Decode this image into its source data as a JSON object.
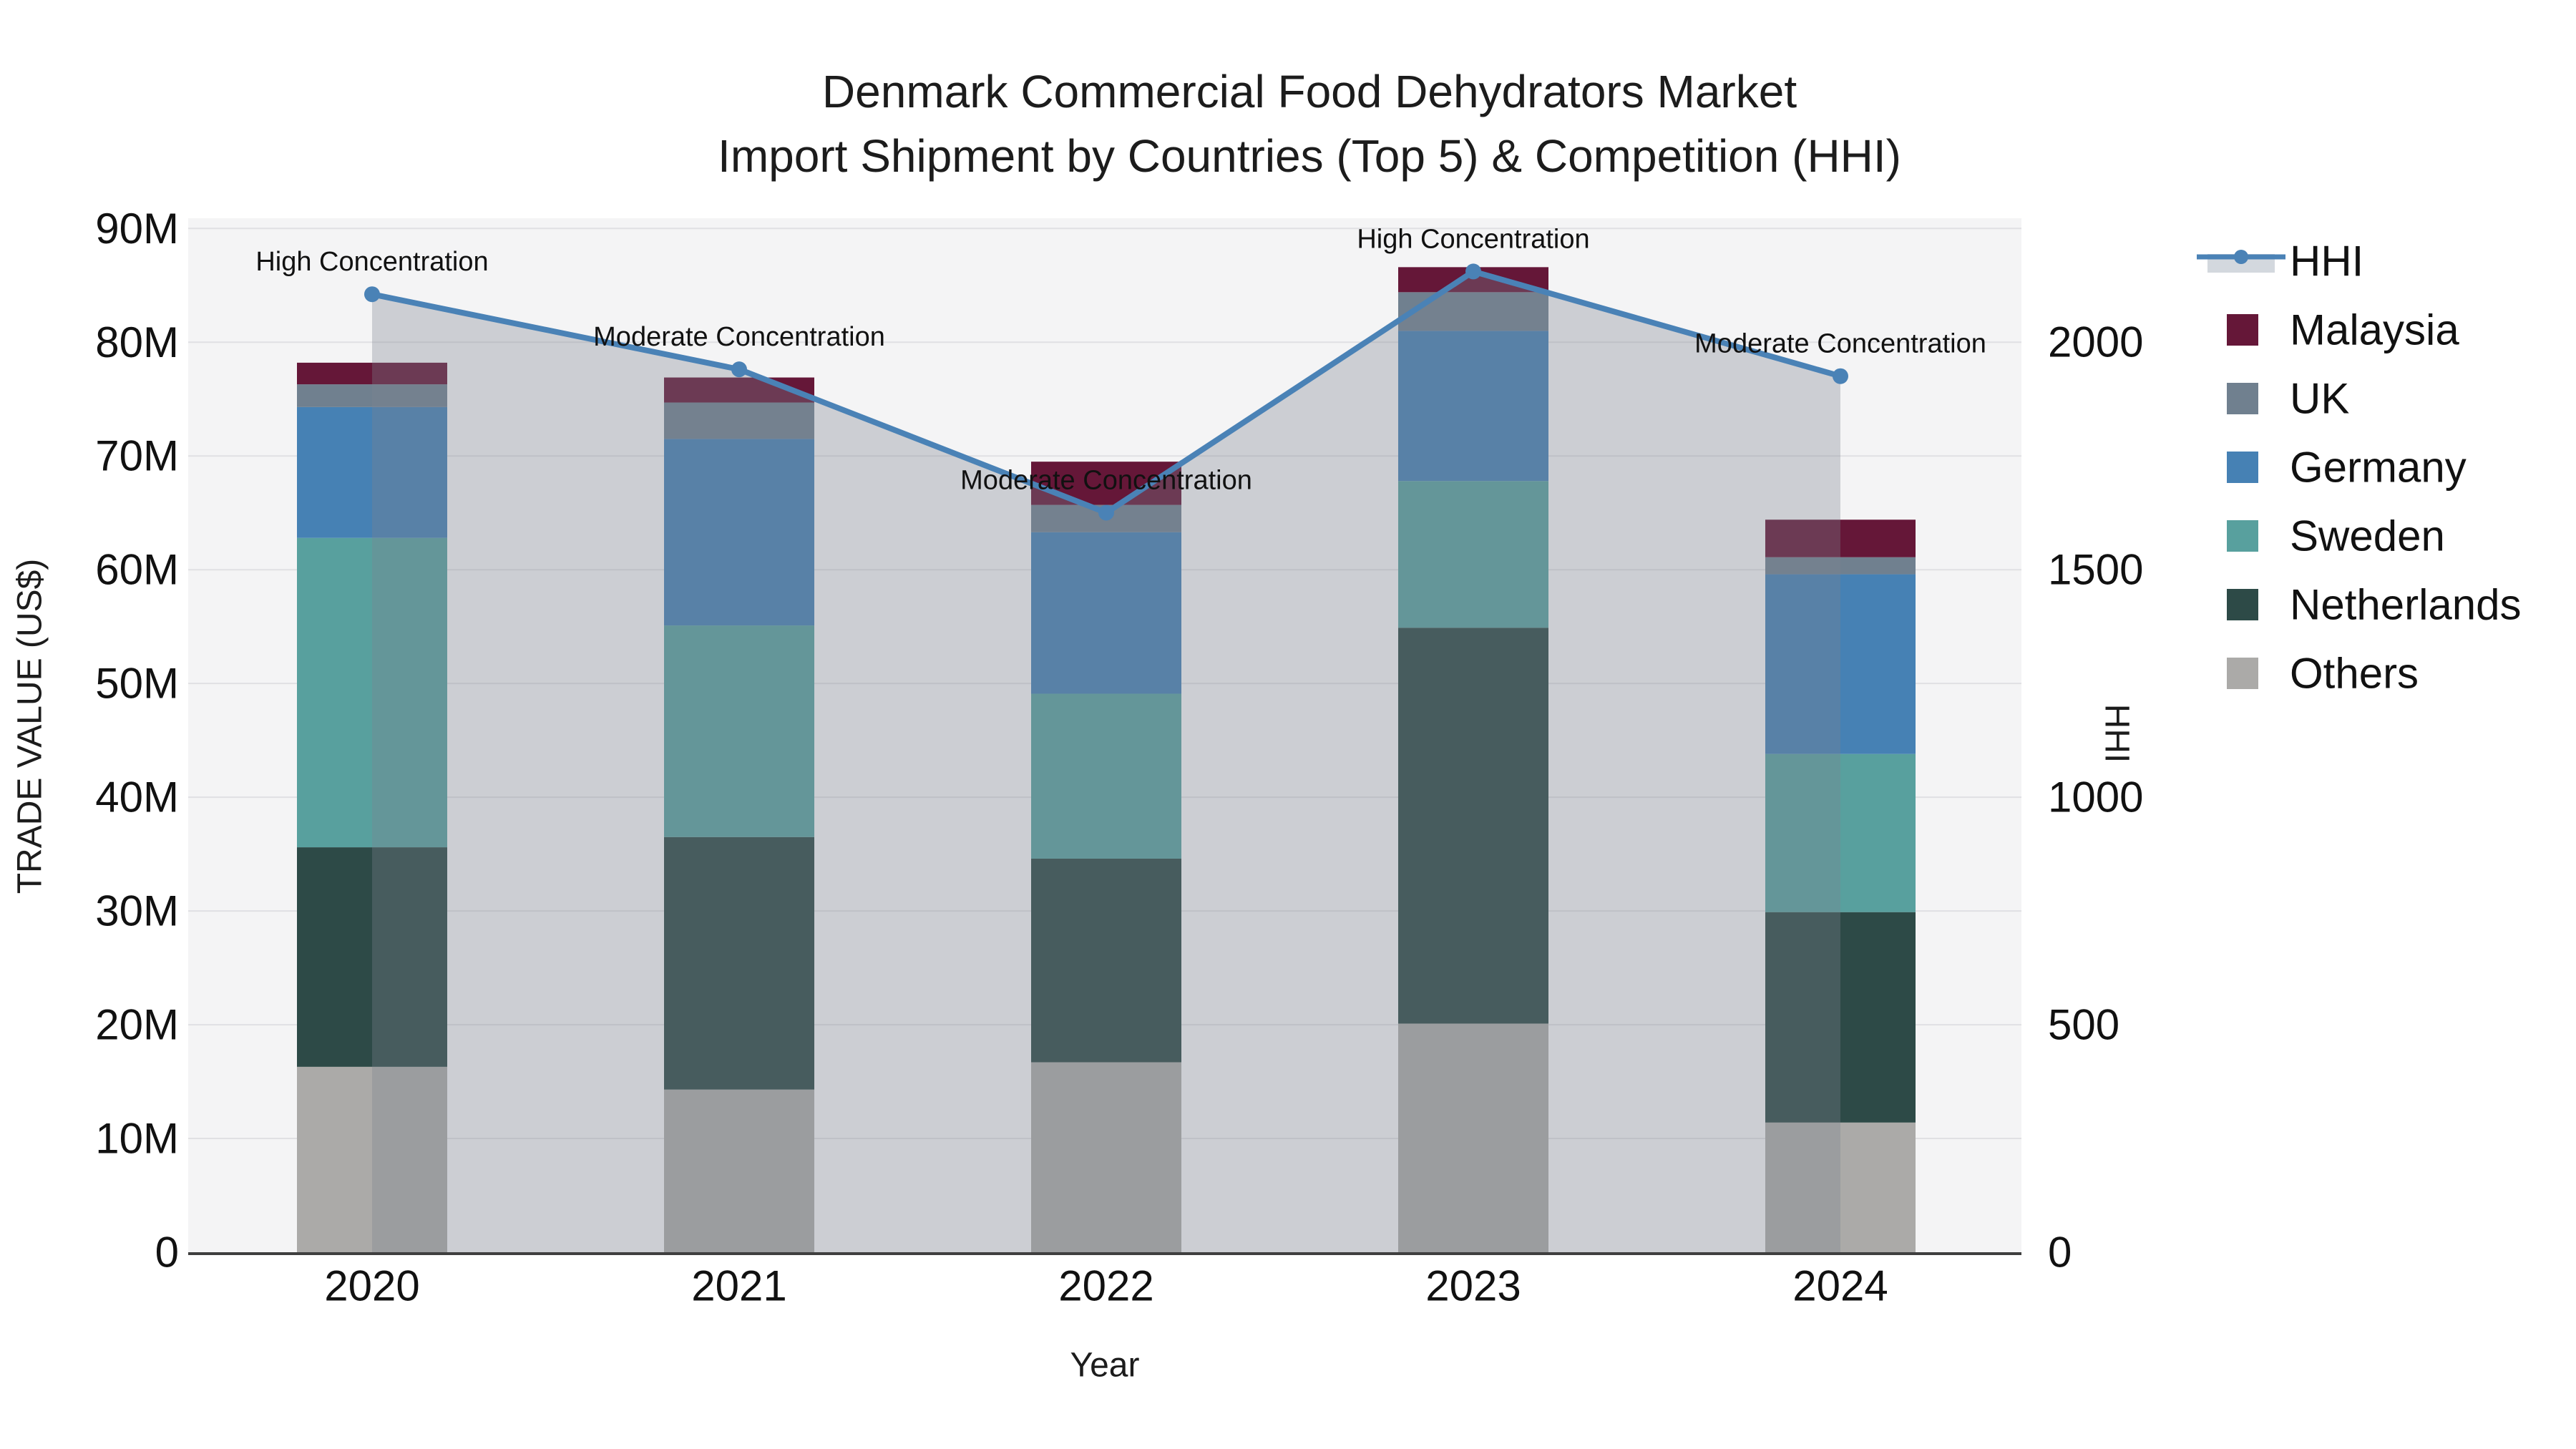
{
  "title": {
    "line1": "Denmark Commercial Food Dehydrators Market",
    "line2": "Import Shipment by Countries (Top 5) & Competition (HHI)"
  },
  "axes": {
    "left": {
      "title": "TRADE VALUE (US$)",
      "tick_labels": [
        "0",
        "10M",
        "20M",
        "30M",
        "40M",
        "50M",
        "60M",
        "70M",
        "80M",
        "90M"
      ],
      "tick_values": [
        0,
        10,
        20,
        30,
        40,
        50,
        60,
        70,
        80,
        90
      ]
    },
    "right": {
      "title": "HHI",
      "tick_labels": [
        "0",
        "500",
        "1000",
        "1500",
        "2000"
      ],
      "tick_values": [
        0,
        500,
        1000,
        1500,
        2000
      ]
    },
    "x": {
      "title": "Year",
      "tick_labels": [
        "2020",
        "2021",
        "2022",
        "2023",
        "2024"
      ]
    }
  },
  "legend": {
    "items": [
      {
        "label": "HHI",
        "type": "line",
        "color": "#4a82b6"
      },
      {
        "label": "Malaysia",
        "type": "swatch",
        "color": "#651738"
      },
      {
        "label": "UK",
        "type": "swatch",
        "color": "#70808f"
      },
      {
        "label": "Germany",
        "type": "swatch",
        "color": "#4681b4"
      },
      {
        "label": "Sweden",
        "type": "swatch",
        "color": "#58a09e"
      },
      {
        "label": "Netherlands",
        "type": "swatch",
        "color": "#2d4a47"
      },
      {
        "label": "Others",
        "type": "swatch",
        "color": "#abaaa8"
      }
    ]
  },
  "annotations": [
    {
      "x": "2020",
      "text": "High Concentration"
    },
    {
      "x": "2021",
      "text": "Moderate Concentration"
    },
    {
      "x": "2022",
      "text": "Moderate Concentration"
    },
    {
      "x": "2023",
      "text": "High Concentration"
    },
    {
      "x": "2024",
      "text": "Moderate Concentration"
    }
  ],
  "colors": {
    "plot_bg": "#f4f4f5",
    "grid": "#e0e0e3",
    "axis_line": "#3f3f3f",
    "fill_overlay": "rgba(124,130,144,0.33)",
    "hhi_line": "#4a82b6",
    "legend_fill_band": "#d3d8de",
    "text": "#111111"
  },
  "chart_data": {
    "type": "stacked-bar+line",
    "title": "Denmark Commercial Food Dehydrators Market — Import Shipment by Countries (Top 5) & Competition (HHI)",
    "categories": [
      "2020",
      "2021",
      "2022",
      "2023",
      "2024"
    ],
    "series": [
      {
        "name": "Others",
        "color": "#abaaa8",
        "values": [
          16.3,
          14.3,
          16.7,
          20.1,
          11.4
        ]
      },
      {
        "name": "Netherlands",
        "color": "#2d4a47",
        "values": [
          19.3,
          22.2,
          17.9,
          34.8,
          18.5
        ]
      },
      {
        "name": "Sweden",
        "color": "#58a09e",
        "values": [
          27.2,
          18.6,
          14.5,
          12.9,
          13.9
        ]
      },
      {
        "name": "Germany",
        "color": "#4681b4",
        "values": [
          11.5,
          16.4,
          14.2,
          13.2,
          15.8
        ]
      },
      {
        "name": "UK",
        "color": "#70808f",
        "values": [
          2.0,
          3.2,
          2.4,
          3.4,
          1.5
        ]
      },
      {
        "name": "Malaysia",
        "color": "#651738",
        "values": [
          1.9,
          2.2,
          3.8,
          2.2,
          3.3
        ]
      }
    ],
    "bar_totals": [
      78.2,
      76.9,
      69.5,
      86.6,
      64.4
    ],
    "line": {
      "name": "HHI",
      "color": "#4a82b6",
      "area_fill": "rgba(124,130,144,0.33)",
      "values": [
        2105,
        1940,
        1625,
        2155,
        1925
      ]
    },
    "xlabel": "Year",
    "ylabel": "TRADE VALUE (US$)",
    "y2label": "HHI",
    "ylim": [
      0,
      90.9
    ],
    "y2lim": [
      0,
      2272
    ],
    "grid": true,
    "legend_position": "right"
  }
}
